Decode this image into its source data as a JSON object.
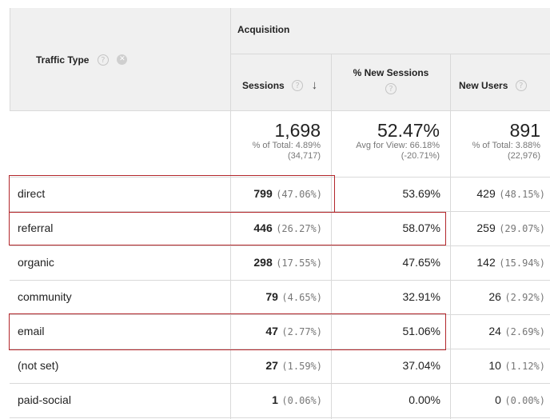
{
  "header": {
    "dimension_label": "Traffic Type",
    "group_label": "Acquisition",
    "columns": [
      {
        "label": "Sessions"
      },
      {
        "label": "% New Sessions"
      },
      {
        "label": "New Users"
      }
    ],
    "help_glyph": "?",
    "remove_glyph": "✕",
    "sort_glyph": "↓"
  },
  "totals": {
    "sessions": {
      "value": "1,698",
      "line1": "% of Total: 4.89%",
      "line2": "(34,717)"
    },
    "new_sessions": {
      "value": "52.47%",
      "line1": "Avg for View: 66.18%",
      "line2": "(-20.71%)"
    },
    "new_users": {
      "value": "891",
      "line1": "% of Total: 3.88%",
      "line2": "(22,976)"
    }
  },
  "rows": [
    {
      "type": "direct",
      "sessions": "799",
      "sessions_pct": "(47.06%)",
      "new_sessions": "53.69%",
      "new_users": "429",
      "new_users_pct": "(48.15%)"
    },
    {
      "type": "referral",
      "sessions": "446",
      "sessions_pct": "(26.27%)",
      "new_sessions": "58.07%",
      "new_users": "259",
      "new_users_pct": "(29.07%)"
    },
    {
      "type": "organic",
      "sessions": "298",
      "sessions_pct": "(17.55%)",
      "new_sessions": "47.65%",
      "new_users": "142",
      "new_users_pct": "(15.94%)"
    },
    {
      "type": "community",
      "sessions": "79",
      "sessions_pct": "(4.65%)",
      "new_sessions": "32.91%",
      "new_users": "26",
      "new_users_pct": "(2.92%)"
    },
    {
      "type": "email",
      "sessions": "47",
      "sessions_pct": "(2.77%)",
      "new_sessions": "51.06%",
      "new_users": "24",
      "new_users_pct": "(2.69%)"
    },
    {
      "type": "(not set)",
      "sessions": "27",
      "sessions_pct": "(1.59%)",
      "new_sessions": "37.04%",
      "new_users": "10",
      "new_users_pct": "(1.12%)"
    },
    {
      "type": "paid-social",
      "sessions": "1",
      "sessions_pct": "(0.06%)",
      "new_sessions": "0.00%",
      "new_users": "0",
      "new_users_pct": "(0.00%)"
    }
  ],
  "highlight_color": "#b3262b"
}
